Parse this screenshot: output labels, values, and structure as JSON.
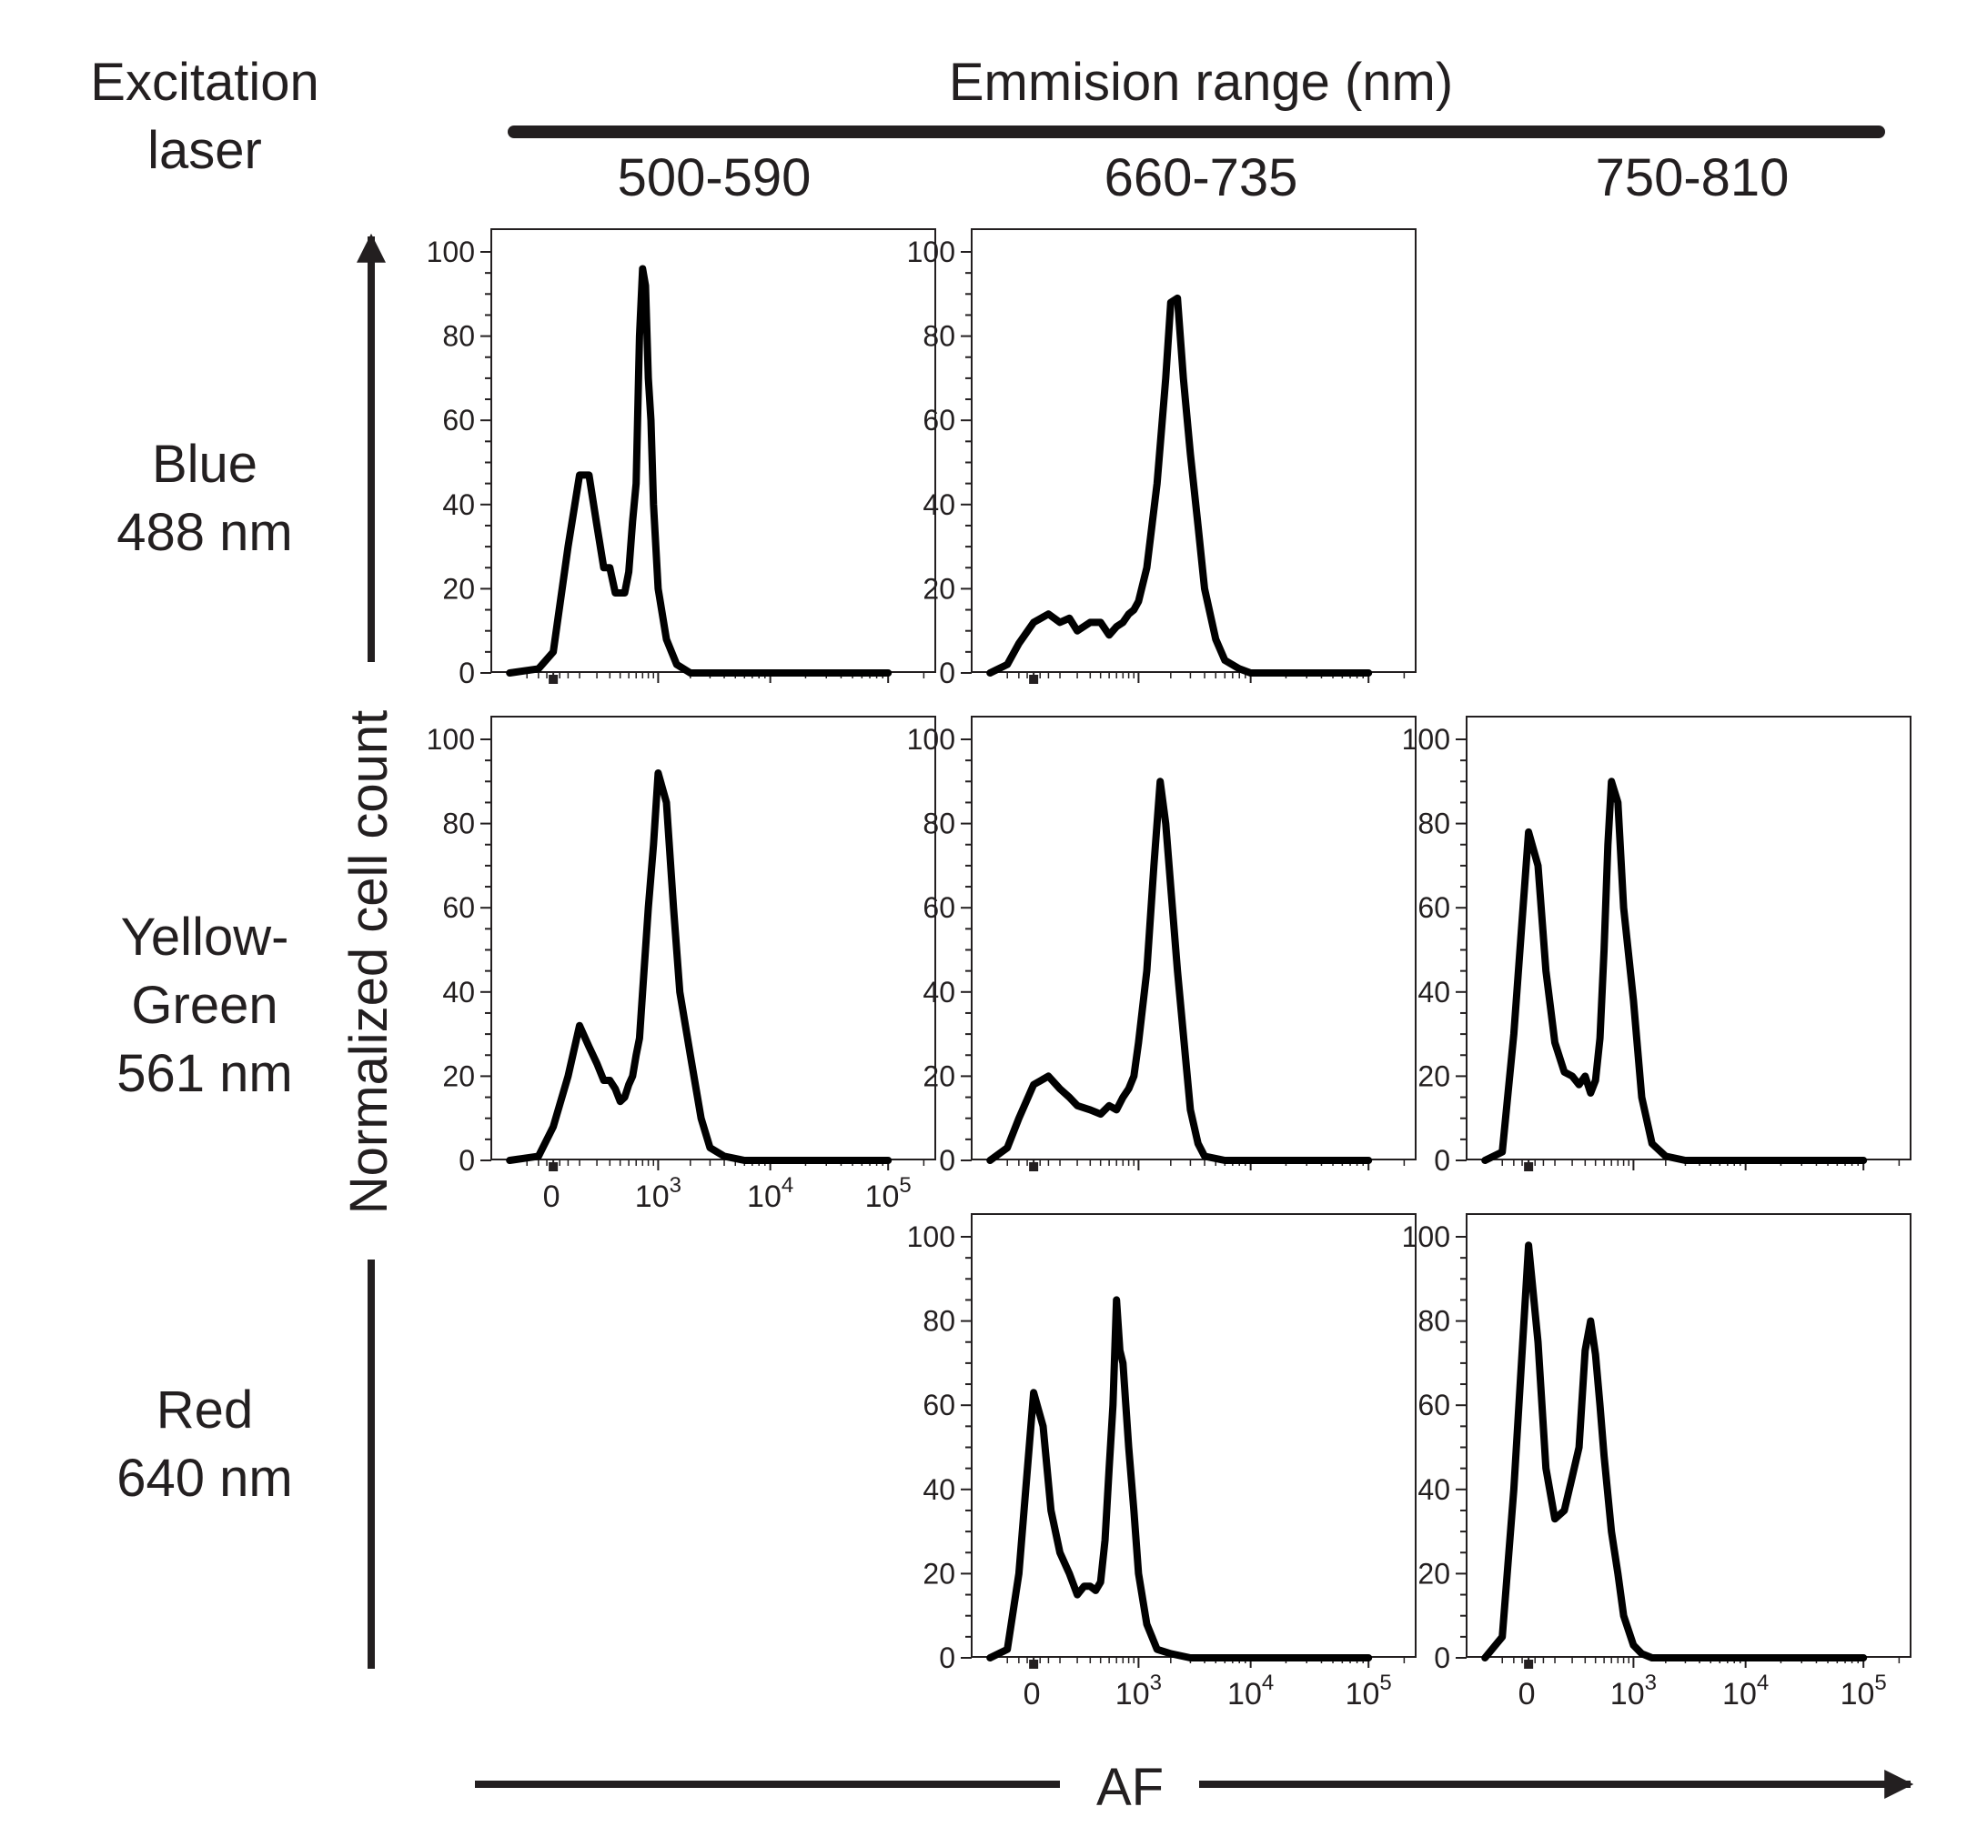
{
  "figure": {
    "excitation_header": [
      "Excitation",
      "laser"
    ],
    "emission_header": "Emmision range (nm)",
    "columns": [
      "500-590",
      "660-735",
      "750-810"
    ],
    "rows": [
      [
        "Blue",
        "488 nm"
      ],
      [
        "Yellow-",
        "Green",
        "561 nm"
      ],
      [
        "Red",
        "640 nm"
      ]
    ],
    "ylabel": "Normalized cell count",
    "xlabel": "AF",
    "line_color": "#000000"
  },
  "chart_data": [
    {
      "type": "line",
      "row": 0,
      "col": 0,
      "ylim": [
        0,
        100
      ],
      "yticks": [
        0,
        20,
        40,
        60,
        80,
        100
      ],
      "x_scale": "biexponential",
      "xticks": [
        "",
        "",
        "",
        ""
      ],
      "x": [
        -200,
        -50,
        0,
        50,
        100,
        150,
        200,
        250,
        300,
        350,
        400,
        450,
        500,
        550,
        600,
        650,
        700,
        750,
        800,
        850,
        900,
        1000,
        1200,
        1500,
        2000,
        3000,
        5000,
        10000,
        20000,
        50000,
        100000
      ],
      "y": [
        0,
        1,
        5,
        30,
        47,
        47,
        35,
        25,
        25,
        19,
        19,
        19,
        24,
        36,
        45,
        80,
        96,
        92,
        70,
        60,
        40,
        20,
        8,
        2,
        0,
        0,
        0,
        0,
        0,
        0,
        0
      ]
    },
    {
      "type": "line",
      "row": 0,
      "col": 1,
      "ylim": [
        0,
        100
      ],
      "yticks": [
        0,
        20,
        40,
        60,
        80,
        100
      ],
      "x_scale": "biexponential",
      "xticks": [
        "",
        "",
        "",
        ""
      ],
      "x": [
        -200,
        -100,
        -50,
        0,
        50,
        100,
        150,
        200,
        300,
        400,
        500,
        600,
        700,
        800,
        900,
        1000,
        1200,
        1500,
        1800,
        2000,
        2300,
        2600,
        3000,
        3500,
        4000,
        5000,
        6000,
        8000,
        10000,
        20000,
        50000,
        100000
      ],
      "y": [
        0,
        2,
        7,
        12,
        14,
        12,
        13,
        10,
        12,
        12,
        9,
        11,
        12,
        14,
        15,
        17,
        25,
        45,
        70,
        88,
        89,
        70,
        52,
        35,
        20,
        8,
        3,
        1,
        0,
        0,
        0,
        0
      ]
    },
    {
      "type": "line",
      "row": 1,
      "col": 0,
      "ylim": [
        0,
        100
      ],
      "yticks": [
        0,
        20,
        40,
        60,
        80,
        100
      ],
      "x_scale": "biexponential",
      "xticks": [
        "0",
        "10^3",
        "10^4",
        "10^5"
      ],
      "x": [
        -200,
        -50,
        0,
        50,
        100,
        150,
        200,
        250,
        300,
        350,
        400,
        450,
        500,
        550,
        600,
        650,
        700,
        800,
        900,
        1000,
        1200,
        1400,
        1600,
        2000,
        2500,
        3000,
        4000,
        6000,
        10000,
        20000,
        50000,
        100000
      ],
      "y": [
        0,
        1,
        8,
        20,
        32,
        27,
        23,
        19,
        19,
        17,
        14,
        15,
        18,
        20,
        25,
        29,
        40,
        60,
        75,
        92,
        85,
        60,
        40,
        25,
        10,
        3,
        1,
        0,
        0,
        0,
        0,
        0
      ]
    },
    {
      "type": "line",
      "row": 1,
      "col": 1,
      "ylim": [
        0,
        100
      ],
      "yticks": [
        0,
        20,
        40,
        60,
        80,
        100
      ],
      "x_scale": "biexponential",
      "xticks": [
        "",
        "",
        "",
        ""
      ],
      "x": [
        -200,
        -100,
        -50,
        0,
        50,
        100,
        150,
        200,
        300,
        400,
        500,
        600,
        700,
        800,
        900,
        1000,
        1200,
        1400,
        1600,
        1800,
        2000,
        2300,
        2700,
        3000,
        3500,
        4000,
        6000,
        10000,
        20000,
        50000,
        100000
      ],
      "y": [
        0,
        3,
        10,
        18,
        20,
        17,
        15,
        13,
        12,
        11,
        13,
        12,
        15,
        17,
        20,
        28,
        45,
        70,
        90,
        80,
        65,
        45,
        25,
        12,
        4,
        1,
        0,
        0,
        0,
        0,
        0
      ]
    },
    {
      "type": "line",
      "row": 1,
      "col": 2,
      "ylim": [
        0,
        100
      ],
      "yticks": [
        0,
        20,
        40,
        60,
        80,
        100
      ],
      "x_scale": "biexponential",
      "xticks": [
        "",
        "",
        "",
        ""
      ],
      "x": [
        -200,
        -100,
        -50,
        0,
        30,
        60,
        100,
        150,
        200,
        250,
        300,
        350,
        400,
        450,
        500,
        550,
        600,
        700,
        800,
        1000,
        1200,
        1500,
        2000,
        3000,
        5000,
        10000,
        20000,
        50000,
        100000
      ],
      "y": [
        0,
        2,
        30,
        78,
        70,
        45,
        28,
        21,
        20,
        18,
        20,
        16,
        19,
        29,
        50,
        75,
        90,
        85,
        60,
        38,
        15,
        4,
        1,
        0,
        0,
        0,
        0,
        0,
        0
      ]
    },
    {
      "type": "line",
      "row": 2,
      "col": 1,
      "ylim": [
        0,
        100
      ],
      "yticks": [
        0,
        20,
        40,
        60,
        80,
        100
      ],
      "x_scale": "biexponential",
      "xticks": [
        "0",
        "10^3",
        "10^4",
        "10^5"
      ],
      "x": [
        -200,
        -100,
        -50,
        0,
        30,
        60,
        100,
        150,
        200,
        250,
        300,
        350,
        400,
        450,
        500,
        550,
        600,
        650,
        700,
        800,
        900,
        1000,
        1200,
        1500,
        2000,
        3000,
        5000,
        10000,
        20000,
        50000,
        100000
      ],
      "y": [
        0,
        2,
        20,
        63,
        55,
        35,
        25,
        20,
        15,
        17,
        17,
        16,
        18,
        28,
        45,
        60,
        85,
        73,
        70,
        50,
        35,
        20,
        8,
        2,
        1,
        0,
        0,
        0,
        0,
        0,
        0
      ]
    },
    {
      "type": "line",
      "row": 2,
      "col": 2,
      "ylim": [
        0,
        100
      ],
      "yticks": [
        0,
        20,
        40,
        60,
        80,
        100
      ],
      "x_scale": "biexponential",
      "xticks": [
        "0",
        "10^3",
        "10^4",
        "10^5"
      ],
      "x": [
        -200,
        -100,
        -50,
        0,
        30,
        60,
        100,
        150,
        200,
        250,
        300,
        350,
        400,
        450,
        500,
        600,
        700,
        800,
        1000,
        1200,
        1500,
        2000,
        3000,
        5000,
        10000,
        20000,
        50000,
        100000
      ],
      "y": [
        0,
        5,
        40,
        98,
        75,
        45,
        33,
        35,
        43,
        50,
        73,
        80,
        72,
        60,
        48,
        30,
        20,
        10,
        3,
        1,
        0,
        0,
        0,
        0,
        0,
        0,
        0,
        0
      ]
    }
  ]
}
